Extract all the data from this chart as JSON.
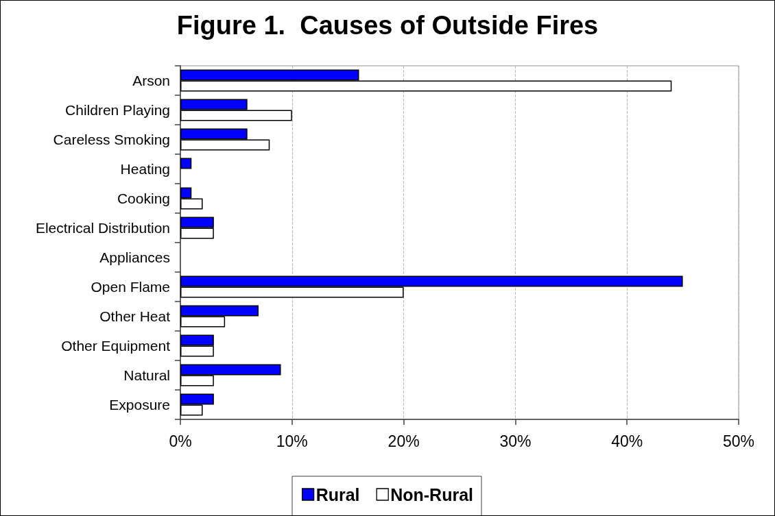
{
  "chart_data": {
    "type": "bar",
    "orientation": "horizontal",
    "title": "Figure 1.  Causes of Outside Fires",
    "categories": [
      "Arson",
      "Children Playing",
      "Careless Smoking",
      "Heating",
      "Cooking",
      "Electrical Distribution",
      "Appliances",
      "Open Flame",
      "Other Heat",
      "Other Equipment",
      "Natural",
      "Exposure"
    ],
    "series": [
      {
        "name": "Rural",
        "color": "#0000ff",
        "values": [
          16,
          6,
          6,
          1,
          1,
          3,
          0,
          45,
          7,
          3,
          9,
          3
        ]
      },
      {
        "name": "Non-Rural",
        "color": "#ffffff",
        "values": [
          44,
          10,
          8,
          0,
          2,
          3,
          0,
          20,
          4,
          3,
          3,
          2
        ]
      }
    ],
    "xlim": [
      0,
      50
    ],
    "xticks": [
      {
        "value": 0,
        "label": "0%"
      },
      {
        "value": 10,
        "label": "10%"
      },
      {
        "value": 20,
        "label": "20%"
      },
      {
        "value": 30,
        "label": "30%"
      },
      {
        "value": 40,
        "label": "40%"
      },
      {
        "value": 50,
        "label": "50%"
      }
    ],
    "grid": "x",
    "legend": "bottom"
  }
}
